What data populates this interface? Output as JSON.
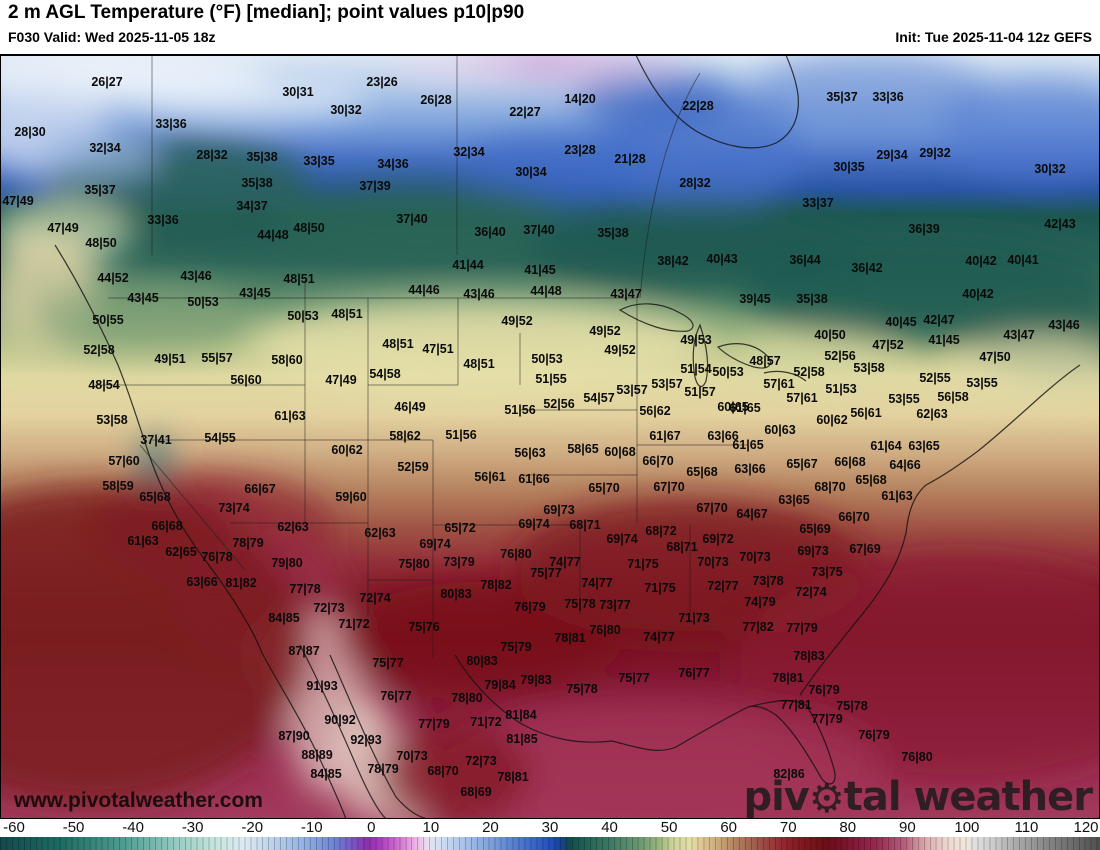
{
  "header": {
    "title": "2 m AGL Temperature (°F) [median]; point values p10|p90",
    "valid": "F030 Valid: Wed 2025-11-05 18z",
    "init": "Init: Tue 2025-11-04 12z GEFS"
  },
  "watermark": {
    "url": "www.pivotalweather.com",
    "logo_pre": "piv",
    "logo_gear": "⚙",
    "logo_post": "tal weather"
  },
  "chart_data": {
    "type": "heatmap",
    "title": "2 m AGL Temperature (°F) [median]; point values p10|p90",
    "model": "GEFS",
    "forecast_hour": "F030",
    "valid_time": "Wed 2025-11-05 18z",
    "init_time": "Tue 2025-11-04 12z",
    "units": "°F",
    "colorbar": {
      "ticks": [
        -60,
        -50,
        -40,
        -30,
        -20,
        -10,
        0,
        10,
        20,
        30,
        40,
        50,
        60,
        70,
        80,
        90,
        100,
        110,
        120
      ],
      "stops": [
        {
          "t": -60,
          "c": "#13494e"
        },
        {
          "t": -50,
          "c": "#1d6b62"
        },
        {
          "t": -40,
          "c": "#4d9b90"
        },
        {
          "t": -30,
          "c": "#9fd0c6"
        },
        {
          "t": -25,
          "c": "#c4e4dc"
        },
        {
          "t": -20,
          "c": "#dceaf2"
        },
        {
          "t": -15,
          "c": "#b9cfeb"
        },
        {
          "t": -10,
          "c": "#8fb0e0"
        },
        {
          "t": -5,
          "c": "#6b7fd4"
        },
        {
          "t": -2,
          "c": "#7b51c3"
        },
        {
          "t": 0,
          "c": "#8b2fae"
        },
        {
          "t": 2,
          "c": "#a93bbd"
        },
        {
          "t": 5,
          "c": "#cf6ccf"
        },
        {
          "t": 8,
          "c": "#ecb2e3"
        },
        {
          "t": 10,
          "c": "#e7e0f2"
        },
        {
          "t": 12,
          "c": "#d3def2"
        },
        {
          "t": 15,
          "c": "#b2c9ea"
        },
        {
          "t": 20,
          "c": "#7fa3dc"
        },
        {
          "t": 25,
          "c": "#4f78cd"
        },
        {
          "t": 30,
          "c": "#2450bd"
        },
        {
          "t": 32,
          "c": "#15418f"
        },
        {
          "t": 33,
          "c": "#124a4e"
        },
        {
          "t": 35,
          "c": "#1d5c54"
        },
        {
          "t": 40,
          "c": "#3d7a64"
        },
        {
          "t": 45,
          "c": "#6e9b72"
        },
        {
          "t": 48,
          "c": "#9cb77f"
        },
        {
          "t": 50,
          "c": "#ccd099"
        },
        {
          "t": 53,
          "c": "#e5dfa8"
        },
        {
          "t": 55,
          "c": "#dcc493"
        },
        {
          "t": 58,
          "c": "#c6a376"
        },
        {
          "t": 60,
          "c": "#b28561"
        },
        {
          "t": 63,
          "c": "#a06350"
        },
        {
          "t": 65,
          "c": "#9a4a42"
        },
        {
          "t": 68,
          "c": "#93292f"
        },
        {
          "t": 70,
          "c": "#871c24"
        },
        {
          "t": 73,
          "c": "#78141b"
        },
        {
          "t": 75,
          "c": "#6d0d15"
        },
        {
          "t": 77,
          "c": "#740f22"
        },
        {
          "t": 80,
          "c": "#86193a"
        },
        {
          "t": 83,
          "c": "#96274c"
        },
        {
          "t": 85,
          "c": "#a23a5e"
        },
        {
          "t": 88,
          "c": "#b65f7d"
        },
        {
          "t": 90,
          "c": "#ca8b99"
        },
        {
          "t": 92,
          "c": "#ddb3b3"
        },
        {
          "t": 95,
          "c": "#ecd6cd"
        },
        {
          "t": 98,
          "c": "#f2e7db"
        },
        {
          "t": 100,
          "c": "#dcdcdc"
        },
        {
          "t": 103,
          "c": "#c8c8c8"
        },
        {
          "t": 105,
          "c": "#b4b4b4"
        },
        {
          "t": 110,
          "c": "#8f8f8f"
        },
        {
          "t": 115,
          "c": "#6f6f6f"
        },
        {
          "t": 120,
          "c": "#4f4f4f"
        }
      ]
    },
    "point_values": [
      [
        107,
        27,
        "26|27"
      ],
      [
        298,
        37,
        "30|31"
      ],
      [
        346,
        55,
        "30|32"
      ],
      [
        171,
        69,
        "33|36"
      ],
      [
        30,
        77,
        "28|30"
      ],
      [
        105,
        93,
        "32|34"
      ],
      [
        212,
        100,
        "28|32"
      ],
      [
        262,
        102,
        "35|38"
      ],
      [
        319,
        106,
        "33|35"
      ],
      [
        257,
        128,
        "35|38"
      ],
      [
        100,
        135,
        "35|37"
      ],
      [
        18,
        146,
        "47|49"
      ],
      [
        252,
        151,
        "34|37"
      ],
      [
        163,
        165,
        "33|36"
      ],
      [
        63,
        173,
        "47|49"
      ],
      [
        309,
        173,
        "48|50"
      ],
      [
        273,
        180,
        "44|48"
      ],
      [
        101,
        188,
        "48|50"
      ],
      [
        382,
        27,
        "23|26"
      ],
      [
        436,
        45,
        "26|28"
      ],
      [
        580,
        44,
        "14|20"
      ],
      [
        525,
        57,
        "22|27"
      ],
      [
        698,
        51,
        "22|28"
      ],
      [
        469,
        97,
        "32|34"
      ],
      [
        580,
        95,
        "23|28"
      ],
      [
        630,
        104,
        "21|28"
      ],
      [
        393,
        109,
        "34|36"
      ],
      [
        695,
        128,
        "28|32"
      ],
      [
        375,
        131,
        "37|39"
      ],
      [
        531,
        117,
        "30|34"
      ],
      [
        412,
        164,
        "37|40"
      ],
      [
        490,
        177,
        "36|40"
      ],
      [
        539,
        175,
        "37|40"
      ],
      [
        613,
        178,
        "35|38"
      ],
      [
        842,
        42,
        "35|37"
      ],
      [
        888,
        42,
        "33|36"
      ],
      [
        892,
        100,
        "29|34"
      ],
      [
        935,
        98,
        "29|32"
      ],
      [
        849,
        112,
        "30|35"
      ],
      [
        1050,
        114,
        "30|32"
      ],
      [
        818,
        148,
        "33|37"
      ],
      [
        924,
        174,
        "36|39"
      ],
      [
        1060,
        169,
        "42|43"
      ],
      [
        113,
        223,
        "44|52"
      ],
      [
        196,
        221,
        "43|46"
      ],
      [
        299,
        224,
        "48|51"
      ],
      [
        143,
        243,
        "43|45"
      ],
      [
        255,
        238,
        "43|45"
      ],
      [
        203,
        247,
        "50|53"
      ],
      [
        108,
        265,
        "50|55"
      ],
      [
        303,
        261,
        "50|53"
      ],
      [
        347,
        259,
        "48|51"
      ],
      [
        99,
        295,
        "52|58"
      ],
      [
        170,
        304,
        "49|51"
      ],
      [
        217,
        303,
        "55|57"
      ],
      [
        287,
        305,
        "58|60"
      ],
      [
        246,
        325,
        "56|60"
      ],
      [
        341,
        325,
        "47|49"
      ],
      [
        104,
        330,
        "48|54"
      ],
      [
        112,
        365,
        "53|58"
      ],
      [
        290,
        361,
        "61|63"
      ],
      [
        156,
        385,
        "37|41"
      ],
      [
        220,
        383,
        "54|55"
      ],
      [
        347,
        395,
        "60|62"
      ],
      [
        468,
        210,
        "41|44"
      ],
      [
        540,
        215,
        "41|45"
      ],
      [
        673,
        206,
        "38|42"
      ],
      [
        722,
        204,
        "40|43"
      ],
      [
        424,
        235,
        "44|46"
      ],
      [
        479,
        239,
        "43|46"
      ],
      [
        546,
        236,
        "44|48"
      ],
      [
        626,
        239,
        "43|47"
      ],
      [
        517,
        266,
        "49|52"
      ],
      [
        605,
        276,
        "49|52"
      ],
      [
        398,
        289,
        "48|51"
      ],
      [
        438,
        294,
        "47|51"
      ],
      [
        696,
        285,
        "49|53"
      ],
      [
        620,
        295,
        "49|52"
      ],
      [
        385,
        319,
        "54|58"
      ],
      [
        479,
        309,
        "48|51"
      ],
      [
        547,
        304,
        "50|53"
      ],
      [
        696,
        314,
        "51|54"
      ],
      [
        728,
        317,
        "50|53"
      ],
      [
        551,
        324,
        "51|55"
      ],
      [
        667,
        329,
        "53|57"
      ],
      [
        632,
        335,
        "53|57"
      ],
      [
        700,
        337,
        "51|57"
      ],
      [
        599,
        343,
        "54|57"
      ],
      [
        559,
        349,
        "52|56"
      ],
      [
        410,
        352,
        "46|49"
      ],
      [
        520,
        355,
        "51|56"
      ],
      [
        655,
        356,
        "56|62"
      ],
      [
        733,
        352,
        "60|65"
      ],
      [
        405,
        381,
        "58|62"
      ],
      [
        461,
        380,
        "51|56"
      ],
      [
        665,
        381,
        "61|67"
      ],
      [
        723,
        381,
        "63|66"
      ],
      [
        530,
        398,
        "56|63"
      ],
      [
        583,
        394,
        "58|65"
      ],
      [
        620,
        397,
        "60|68"
      ],
      [
        805,
        205,
        "36|44"
      ],
      [
        867,
        213,
        "36|42"
      ],
      [
        981,
        206,
        "40|42"
      ],
      [
        1023,
        205,
        "40|41"
      ],
      [
        755,
        244,
        "39|45"
      ],
      [
        812,
        244,
        "35|38"
      ],
      [
        978,
        239,
        "40|42"
      ],
      [
        901,
        267,
        "40|45"
      ],
      [
        939,
        265,
        "42|47"
      ],
      [
        1064,
        270,
        "43|46"
      ],
      [
        1019,
        280,
        "43|47"
      ],
      [
        944,
        285,
        "41|45"
      ],
      [
        830,
        280,
        "40|50"
      ],
      [
        888,
        290,
        "47|52"
      ],
      [
        995,
        302,
        "47|50"
      ],
      [
        840,
        301,
        "52|56"
      ],
      [
        765,
        306,
        "48|57"
      ],
      [
        869,
        313,
        "53|58"
      ],
      [
        809,
        317,
        "52|58"
      ],
      [
        935,
        323,
        "52|55"
      ],
      [
        982,
        328,
        "53|55"
      ],
      [
        779,
        329,
        "57|61"
      ],
      [
        841,
        334,
        "51|53"
      ],
      [
        953,
        342,
        "56|58"
      ],
      [
        802,
        343,
        "57|61"
      ],
      [
        904,
        344,
        "53|55"
      ],
      [
        745,
        353,
        "61|65"
      ],
      [
        866,
        358,
        "56|61"
      ],
      [
        932,
        359,
        "62|63"
      ],
      [
        832,
        365,
        "60|62"
      ],
      [
        780,
        375,
        "60|63"
      ],
      [
        748,
        390,
        "61|65"
      ],
      [
        886,
        391,
        "61|64"
      ],
      [
        924,
        391,
        "63|65"
      ],
      [
        124,
        406,
        "57|60"
      ],
      [
        118,
        431,
        "58|59"
      ],
      [
        155,
        442,
        "65|68"
      ],
      [
        260,
        434,
        "66|67"
      ],
      [
        351,
        442,
        "59|60"
      ],
      [
        234,
        453,
        "73|74"
      ],
      [
        167,
        471,
        "66|68"
      ],
      [
        293,
        472,
        "62|63"
      ],
      [
        143,
        486,
        "61|63"
      ],
      [
        248,
        488,
        "78|79"
      ],
      [
        181,
        497,
        "62|65"
      ],
      [
        217,
        502,
        "76|78"
      ],
      [
        287,
        508,
        "79|80"
      ],
      [
        202,
        527,
        "63|66"
      ],
      [
        241,
        528,
        "81|82"
      ],
      [
        305,
        534,
        "77|78"
      ],
      [
        329,
        553,
        "72|73"
      ],
      [
        284,
        563,
        "84|85"
      ],
      [
        354,
        569,
        "71|72"
      ],
      [
        304,
        596,
        "87|87"
      ],
      [
        413,
        412,
        "52|59"
      ],
      [
        490,
        422,
        "56|61"
      ],
      [
        534,
        424,
        "61|66"
      ],
      [
        658,
        406,
        "66|70"
      ],
      [
        702,
        417,
        "65|68"
      ],
      [
        604,
        433,
        "65|70"
      ],
      [
        669,
        432,
        "67|70"
      ],
      [
        712,
        453,
        "67|70"
      ],
      [
        559,
        455,
        "69|73"
      ],
      [
        534,
        469,
        "69|74"
      ],
      [
        585,
        470,
        "68|71"
      ],
      [
        460,
        473,
        "65|72"
      ],
      [
        661,
        476,
        "68|72"
      ],
      [
        380,
        478,
        "62|63"
      ],
      [
        435,
        489,
        "69|74"
      ],
      [
        718,
        484,
        "69|72"
      ],
      [
        682,
        492,
        "68|71"
      ],
      [
        622,
        484,
        "69|74"
      ],
      [
        414,
        509,
        "75|80"
      ],
      [
        459,
        507,
        "73|79"
      ],
      [
        516,
        499,
        "76|80"
      ],
      [
        565,
        507,
        "74|77"
      ],
      [
        643,
        509,
        "71|75"
      ],
      [
        713,
        507,
        "70|73"
      ],
      [
        546,
        518,
        "75|77"
      ],
      [
        496,
        530,
        "78|82"
      ],
      [
        597,
        528,
        "74|77"
      ],
      [
        660,
        533,
        "71|75"
      ],
      [
        723,
        531,
        "72|77"
      ],
      [
        456,
        539,
        "80|83"
      ],
      [
        375,
        543,
        "72|74"
      ],
      [
        530,
        552,
        "76|79"
      ],
      [
        580,
        549,
        "75|78"
      ],
      [
        615,
        550,
        "73|77"
      ],
      [
        694,
        563,
        "71|73"
      ],
      [
        424,
        572,
        "75|76"
      ],
      [
        605,
        575,
        "76|80"
      ],
      [
        659,
        582,
        "74|77"
      ],
      [
        570,
        583,
        "78|81"
      ],
      [
        516,
        592,
        "75|79"
      ],
      [
        750,
        414,
        "63|66"
      ],
      [
        802,
        409,
        "65|67"
      ],
      [
        850,
        407,
        "66|68"
      ],
      [
        905,
        410,
        "64|66"
      ],
      [
        871,
        425,
        "65|68"
      ],
      [
        830,
        432,
        "68|70"
      ],
      [
        897,
        441,
        "61|63"
      ],
      [
        794,
        445,
        "63|65"
      ],
      [
        752,
        459,
        "64|67"
      ],
      [
        854,
        462,
        "66|70"
      ],
      [
        815,
        474,
        "65|69"
      ],
      [
        865,
        494,
        "67|69"
      ],
      [
        813,
        496,
        "69|73"
      ],
      [
        755,
        502,
        "70|73"
      ],
      [
        827,
        517,
        "73|75"
      ],
      [
        768,
        526,
        "73|78"
      ],
      [
        811,
        537,
        "72|74"
      ],
      [
        760,
        547,
        "74|79"
      ],
      [
        758,
        572,
        "77|82"
      ],
      [
        802,
        573,
        "77|79"
      ],
      [
        388,
        608,
        "75|77"
      ],
      [
        482,
        606,
        "80|83"
      ],
      [
        322,
        631,
        "91|93"
      ],
      [
        500,
        630,
        "79|84"
      ],
      [
        536,
        625,
        "79|83"
      ],
      [
        582,
        634,
        "75|78"
      ],
      [
        396,
        641,
        "76|77"
      ],
      [
        467,
        643,
        "78|80"
      ],
      [
        340,
        665,
        "90|92"
      ],
      [
        521,
        660,
        "81|84"
      ],
      [
        434,
        669,
        "77|79"
      ],
      [
        486,
        667,
        "71|72"
      ],
      [
        294,
        681,
        "87|90"
      ],
      [
        366,
        685,
        "92|93"
      ],
      [
        522,
        684,
        "81|85"
      ],
      [
        317,
        700,
        "88|89"
      ],
      [
        412,
        701,
        "70|73"
      ],
      [
        481,
        706,
        "72|73"
      ],
      [
        383,
        714,
        "78|79"
      ],
      [
        443,
        716,
        "68|70"
      ],
      [
        326,
        719,
        "84|85"
      ],
      [
        513,
        722,
        "78|81"
      ],
      [
        476,
        737,
        "68|69"
      ],
      [
        634,
        623,
        "75|77"
      ],
      [
        694,
        618,
        "76|77"
      ],
      [
        809,
        601,
        "78|83"
      ],
      [
        788,
        623,
        "78|81"
      ],
      [
        824,
        635,
        "76|79"
      ],
      [
        796,
        650,
        "77|81"
      ],
      [
        852,
        651,
        "75|78"
      ],
      [
        827,
        664,
        "77|79"
      ],
      [
        874,
        680,
        "76|79"
      ],
      [
        917,
        702,
        "76|80"
      ],
      [
        789,
        719,
        "82|86"
      ]
    ]
  }
}
